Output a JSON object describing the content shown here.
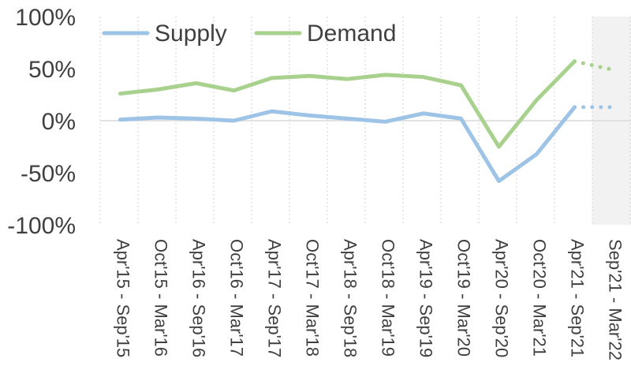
{
  "chart_data": {
    "type": "line",
    "categories": [
      "Apr'15 - Sep'15",
      "Oct'15 - Mar'16",
      "Apr'16 - Sep'16",
      "Oct'16 - Mar'17",
      "Apr'17 - Sep'17",
      "Oct'17 - Mar'18",
      "Apr'18 - Sep'18",
      "Oct'18 - Mar'19",
      "Apr'19 - Sep'19",
      "Oct'19 - Mar'20",
      "Apr'20 - Sep'20",
      "Oct'20 - Mar'21",
      "Apr'21 - Sep'21",
      "Sep'21 - Mar'22"
    ],
    "series": [
      {
        "name": "Supply",
        "color": "#9dc3e6",
        "values": [
          1,
          3,
          2,
          0,
          9,
          5,
          2,
          -1,
          7,
          2,
          -58,
          -32,
          13,
          13
        ],
        "forecast_from_index": 12
      },
      {
        "name": "Demand",
        "color": "#a9d18e",
        "values": [
          26,
          30,
          36,
          29,
          41,
          43,
          40,
          44,
          42,
          34,
          -25,
          20,
          57,
          49
        ],
        "forecast_from_index": 12
      }
    ],
    "yticks": [
      "100%",
      "50%",
      "0%",
      "-50%",
      "-100%"
    ],
    "ylim": [
      -100,
      100
    ],
    "xlabel": "",
    "ylabel": "",
    "grid": true,
    "legend_position": "top-left",
    "forecast_region_color": "#f2f2f2"
  }
}
